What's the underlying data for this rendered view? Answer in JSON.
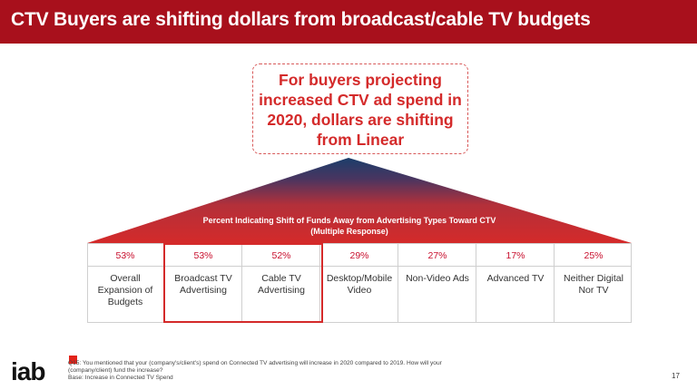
{
  "header": {
    "title": "CTV Buyers are shifting dollars from broadcast/cable TV budgets",
    "bg_color": "#a8101c"
  },
  "callout": {
    "lines": [
      "For buyers projecting",
      "increased CTV ad spend in",
      "2020, dollars are shifting",
      "from Linear"
    ],
    "color": "#d42a2a"
  },
  "chart_data": {
    "type": "table",
    "title": "Percent Indicating Shift of Funds Away from Advertising Types Toward CTV",
    "subtitle": "(Multiple Response)",
    "categories": [
      "Overall Expansion of Budgets",
      "Broadcast TV Advertising",
      "Cable TV Advertising",
      "Desktop/Mobile Video",
      "Non-Video Ads",
      "Advanced TV",
      "Neither Digital Nor TV"
    ],
    "category_lines": [
      [
        "Overall",
        "Expansion of",
        "Budgets"
      ],
      [
        "Broadcast TV",
        "Advertising"
      ],
      [
        "Cable TV",
        "Advertising"
      ],
      [
        "Desktop/Mobile",
        "Video"
      ],
      [
        "Non-Video Ads"
      ],
      [
        "Advanced TV"
      ],
      [
        "Neither Digital",
        "Nor TV"
      ]
    ],
    "values": [
      53,
      53,
      52,
      29,
      27,
      17,
      25
    ],
    "value_labels": [
      "53%",
      "53%",
      "52%",
      "29%",
      "27%",
      "17%",
      "25%"
    ],
    "unit": "%",
    "highlighted": [
      "Broadcast TV Advertising",
      "Cable TV Advertising"
    ]
  },
  "footer": {
    "logo": "iab",
    "note_lines": [
      "Q15: You mentioned that your (company's/client's) spend on Connected TV advertising will increase in 2020 compared to 2019. How will your",
      "(company/client) fund the increase?",
      "Base: Increase in Connected TV Spend"
    ],
    "page_number": "17"
  },
  "colors": {
    "accent": "#d42a2a",
    "triangle_top": "#1b3e6b",
    "triangle_bottom": "#d42a2a"
  }
}
